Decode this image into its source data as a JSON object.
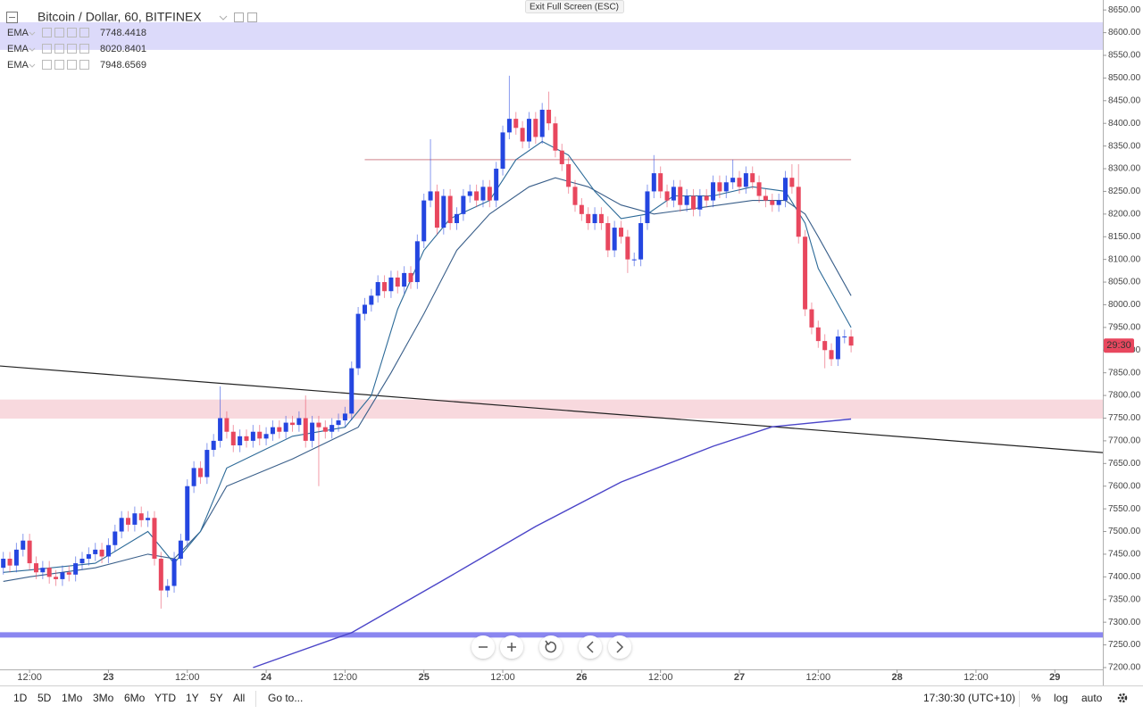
{
  "header": {
    "symbol": "Bitcoin / Dollar, 60, BITFINEX",
    "exit": "Exit Full Screen (ESC)"
  },
  "chart_data": {
    "type": "candlestick",
    "x": [
      -4,
      -3,
      -2,
      -1,
      0,
      1,
      2,
      3,
      4,
      5,
      6,
      7,
      8,
      9,
      10,
      11,
      12,
      13,
      14,
      15,
      16,
      17,
      18,
      19,
      20,
      21,
      22,
      23,
      24,
      25,
      26,
      27,
      28,
      29,
      30,
      31,
      32,
      33,
      34,
      35,
      36,
      37,
      38,
      39,
      40,
      41,
      42,
      43,
      44,
      45,
      46,
      47,
      48,
      49,
      50,
      51,
      52,
      53,
      54,
      55,
      56,
      57,
      58,
      59,
      60,
      61,
      62,
      63,
      64,
      65,
      66,
      67,
      68,
      69,
      70,
      71,
      72,
      73,
      74,
      75,
      76,
      77,
      78,
      79,
      80,
      81,
      82,
      83,
      84,
      85,
      86,
      87,
      88,
      89,
      90,
      91,
      92,
      93,
      94,
      95,
      96,
      97,
      98,
      99,
      100,
      101,
      102,
      103,
      104,
      105,
      106,
      107,
      108,
      109,
      110,
      111,
      112,
      113,
      114,
      115,
      116,
      117,
      118,
      119,
      120,
      121,
      122,
      123,
      124,
      125
    ],
    "open": [
      7420,
      7440,
      7425,
      7460,
      7480,
      7430,
      7410,
      7420,
      7400,
      7395,
      7410,
      7405,
      7430,
      7440,
      7450,
      7460,
      7445,
      7470,
      7500,
      7530,
      7515,
      7540,
      7525,
      7530,
      7440,
      7370,
      7380,
      7440,
      7480,
      7600,
      7640,
      7620,
      7680,
      7700,
      7750,
      7720,
      7690,
      7710,
      7700,
      7720,
      7705,
      7715,
      7730,
      7720,
      7740,
      7735,
      7750,
      7700,
      7740,
      7730,
      7720,
      7735,
      7745,
      7760,
      7860,
      7980,
      8000,
      8020,
      8050,
      8030,
      8060,
      8040,
      8070,
      8050,
      8140,
      8230,
      8250,
      8170,
      8240,
      8180,
      8200,
      8240,
      8250,
      8230,
      8260,
      8230,
      8300,
      8380,
      8410,
      8390,
      8360,
      8410,
      8370,
      8430,
      8400,
      8340,
      8310,
      8260,
      8220,
      8200,
      8180,
      8200,
      8180,
      8120,
      8170,
      8150,
      8100,
      8100,
      8180,
      8250,
      8290,
      8250,
      8230,
      8260,
      8220,
      8240,
      8210,
      8240,
      8230,
      8270,
      8250,
      8270,
      8280,
      8260,
      8290,
      8270,
      8240,
      8230,
      8220,
      8230,
      8280,
      8260,
      8150,
      7990,
      7950,
      7920,
      7900,
      7880,
      7930,
      7930
    ],
    "high": [
      7455,
      7455,
      7475,
      7495,
      7495,
      7445,
      7435,
      7435,
      7415,
      7425,
      7425,
      7445,
      7455,
      7465,
      7475,
      7475,
      7485,
      7515,
      7545,
      7545,
      7555,
      7555,
      7545,
      7545,
      7455,
      7395,
      7455,
      7495,
      7615,
      7655,
      7655,
      7695,
      7715,
      7820,
      7765,
      7735,
      7725,
      7725,
      7735,
      7735,
      7730,
      7745,
      7745,
      7755,
      7755,
      7765,
      7800,
      7755,
      7755,
      7745,
      7750,
      7760,
      7775,
      7875,
      7995,
      8015,
      8035,
      8065,
      8065,
      8075,
      8075,
      8085,
      8085,
      8155,
      8245,
      8365,
      8265,
      8255,
      8255,
      8215,
      8255,
      8265,
      8265,
      8275,
      8275,
      8315,
      8395,
      8505,
      8425,
      8405,
      8425,
      8425,
      8445,
      8470,
      8415,
      8355,
      8325,
      8275,
      8235,
      8215,
      8215,
      8215,
      8195,
      8185,
      8185,
      8165,
      8115,
      8195,
      8265,
      8330,
      8305,
      8265,
      8275,
      8275,
      8255,
      8255,
      8255,
      8255,
      8285,
      8285,
      8285,
      8320,
      8295,
      8305,
      8305,
      8285,
      8255,
      8245,
      8245,
      8295,
      8310,
      8310,
      8165,
      8005,
      7965,
      7935,
      7915,
      7945,
      7945,
      7945
    ],
    "low": [
      7405,
      7410,
      7410,
      7445,
      7415,
      7395,
      7395,
      7385,
      7380,
      7380,
      7390,
      7390,
      7415,
      7425,
      7435,
      7430,
      7430,
      7455,
      7485,
      7500,
      7500,
      7510,
      7510,
      7425,
      7330,
      7355,
      7365,
      7425,
      7465,
      7585,
      7605,
      7605,
      7665,
      7685,
      7705,
      7675,
      7675,
      7685,
      7685,
      7690,
      7690,
      7700,
      7705,
      7705,
      7720,
      7720,
      7685,
      7685,
      7600,
      7705,
      7705,
      7720,
      7730,
      7745,
      7845,
      7965,
      7985,
      8005,
      8015,
      8015,
      8025,
      8025,
      8035,
      8035,
      8125,
      8215,
      8155,
      8155,
      8165,
      8165,
      8185,
      8225,
      8215,
      8215,
      8215,
      8215,
      8285,
      8365,
      8375,
      8345,
      8345,
      8355,
      8355,
      8385,
      8325,
      8295,
      8245,
      8205,
      8185,
      8165,
      8165,
      8165,
      8105,
      8105,
      8135,
      8070,
      8085,
      8085,
      8165,
      8235,
      8235,
      8215,
      8215,
      8205,
      8205,
      8195,
      8195,
      8215,
      8215,
      8235,
      8235,
      8255,
      8245,
      8245,
      8255,
      8225,
      8215,
      8205,
      8205,
      8215,
      8245,
      8135,
      7975,
      7935,
      7905,
      7860,
      7865,
      7865,
      7915,
      7895
    ],
    "close": [
      7440,
      7425,
      7460,
      7480,
      7430,
      7410,
      7420,
      7400,
      7395,
      7410,
      7405,
      7430,
      7440,
      7450,
      7460,
      7445,
      7470,
      7500,
      7530,
      7515,
      7540,
      7525,
      7530,
      7440,
      7370,
      7380,
      7440,
      7480,
      7600,
      7640,
      7620,
      7680,
      7700,
      7750,
      7720,
      7690,
      7710,
      7700,
      7720,
      7705,
      7715,
      7730,
      7720,
      7740,
      7735,
      7750,
      7700,
      7740,
      7730,
      7720,
      7735,
      7745,
      7760,
      7860,
      7980,
      8000,
      8020,
      8050,
      8030,
      8060,
      8040,
      8070,
      8050,
      8140,
      8230,
      8250,
      8170,
      8240,
      8180,
      8200,
      8240,
      8250,
      8230,
      8260,
      8230,
      8300,
      8380,
      8410,
      8390,
      8360,
      8410,
      8370,
      8430,
      8400,
      8340,
      8310,
      8260,
      8220,
      8200,
      8180,
      8200,
      8180,
      8120,
      8170,
      8150,
      8100,
      8100,
      8180,
      8250,
      8290,
      8250,
      8230,
      8260,
      8220,
      8240,
      8210,
      8240,
      8230,
      8270,
      8250,
      8270,
      8280,
      8260,
      8290,
      8270,
      8240,
      8230,
      8220,
      8230,
      8280,
      8260,
      8150,
      7990,
      7950,
      7920,
      7900,
      7880,
      7930,
      7930,
      7910
    ],
    "up_color": "#2446e0",
    "down_color": "#e8475e",
    "xlim": [
      -4.5,
      163.3
    ],
    "xticks": [
      {
        "value": 0,
        "label": "12:00"
      },
      {
        "value": 12,
        "label": "23"
      },
      {
        "value": 24,
        "label": "12:00"
      },
      {
        "value": 36,
        "label": "24"
      },
      {
        "value": 48,
        "label": "12:00"
      },
      {
        "value": 60,
        "label": "25"
      },
      {
        "value": 72,
        "label": "12:00"
      },
      {
        "value": 84,
        "label": "26"
      },
      {
        "value": 96,
        "label": "12:00"
      },
      {
        "value": 108,
        "label": "27"
      },
      {
        "value": 120,
        "label": "12:00"
      },
      {
        "value": 132,
        "label": "28"
      },
      {
        "value": 144,
        "label": "12:00"
      },
      {
        "value": 156,
        "label": "29"
      }
    ],
    "ylim": [
      7196,
      8672
    ],
    "yticks": [
      {
        "value": 7200,
        "label": "7200.00"
      },
      {
        "value": 7250,
        "label": "7250.00"
      },
      {
        "value": 7300,
        "label": "7300.00"
      },
      {
        "value": 7350,
        "label": "7350.00"
      },
      {
        "value": 7400,
        "label": "7400.00"
      },
      {
        "value": 7450,
        "label": "7450.00"
      },
      {
        "value": 7500,
        "label": "7500.00"
      },
      {
        "value": 7550,
        "label": "7550.00"
      },
      {
        "value": 7600,
        "label": "7600.00"
      },
      {
        "value": 7650,
        "label": "7650.00"
      },
      {
        "value": 7700,
        "label": "7700.00"
      },
      {
        "value": 7750,
        "label": "7750.00"
      },
      {
        "value": 7800,
        "label": "7800.00"
      },
      {
        "value": 7850,
        "label": "7850.00"
      },
      {
        "value": 7900,
        "label": "7900.00"
      },
      {
        "value": 7950,
        "label": "7950.00"
      },
      {
        "value": 8000,
        "label": "8000.00"
      },
      {
        "value": 8050,
        "label": "8050.00"
      },
      {
        "value": 8100,
        "label": "8100.00"
      },
      {
        "value": 8150,
        "label": "8150.00"
      },
      {
        "value": 8200,
        "label": "8200.00"
      },
      {
        "value": 8250,
        "label": "8250.00"
      },
      {
        "value": 8300,
        "label": "8300.00"
      },
      {
        "value": 8350,
        "label": "8350.00"
      },
      {
        "value": 8400,
        "label": "8400.00"
      },
      {
        "value": 8450,
        "label": "8450.00"
      },
      {
        "value": 8500,
        "label": "8500.00"
      },
      {
        "value": 8550,
        "label": "8550.00"
      },
      {
        "value": 8600,
        "label": "8600.00"
      },
      {
        "value": 8650,
        "label": "8650.00"
      }
    ],
    "grid": false,
    "indicators": [
      {
        "name": "EMA",
        "value": 7748.4418,
        "color": "#4b45c8",
        "x": [
          34,
          49,
          63,
          77,
          90,
          104,
          113,
          125
        ],
        "values": [
          7200,
          7277,
          7393,
          7511,
          7609,
          7688,
          7731,
          7748
        ]
      },
      {
        "name": "EMA",
        "value": 8020.8401,
        "color": "#3a5f8a",
        "x": [
          -4,
          0,
          10,
          18,
          22,
          26,
          30,
          40,
          50,
          55,
          60,
          65,
          70,
          76,
          80,
          85,
          90,
          95,
          100,
          110,
          115,
          118,
          120,
          125
        ],
        "values": [
          7390,
          7400,
          7420,
          7450,
          7440,
          7500,
          7600,
          7660,
          7730,
          7850,
          7980,
          8120,
          8200,
          8260,
          8280,
          8260,
          8220,
          8200,
          8210,
          8230,
          8230,
          8200,
          8150,
          8020
        ]
      },
      {
        "name": "EMA",
        "value": 7948.6569,
        "color": "#2c6a98",
        "x": [
          -4,
          0,
          10,
          18,
          22,
          26,
          30,
          40,
          48,
          52,
          56,
          60,
          64,
          70,
          74,
          78,
          82,
          86,
          90,
          94,
          98,
          104,
          110,
          115,
          118,
          120,
          125
        ],
        "values": [
          7410,
          7415,
          7430,
          7500,
          7430,
          7500,
          7640,
          7710,
          7730,
          7800,
          7990,
          8120,
          8190,
          8230,
          8320,
          8360,
          8330,
          8250,
          8190,
          8200,
          8240,
          8240,
          8260,
          8250,
          8180,
          8080,
          7950
        ]
      }
    ],
    "zones": [
      {
        "from": 7750,
        "to": 7790,
        "color": "#f8d9de"
      },
      {
        "from": 8563,
        "to": 8622,
        "color": "#dcdafa"
      }
    ],
    "levels": [
      {
        "value": 8320,
        "x": [
          51,
          125
        ],
        "color": "#d99aa0"
      },
      {
        "value": 7272,
        "x": [
          -4.5,
          163.3
        ],
        "color": "#8a86f0"
      }
    ],
    "trendline": {
      "x": [
        -4.5,
        163.3
      ],
      "values": [
        7865,
        7674
      ],
      "color": "#222222"
    },
    "price_label": {
      "text": "29:30",
      "color": "#e8475e"
    }
  },
  "toolbar": {
    "ranges": [
      "1D",
      "5D",
      "1Mo",
      "3Mo",
      "6Mo",
      "YTD",
      "1Y",
      "5Y",
      "All"
    ],
    "goto": "Go to...",
    "clock": "17:30:30 (UTC+10)",
    "percent": "%",
    "log": "log",
    "auto": "auto"
  }
}
